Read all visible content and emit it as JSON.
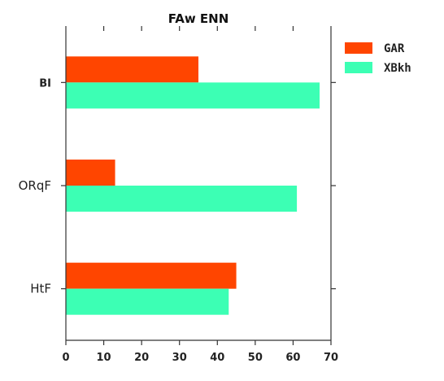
{
  "chart_data": {
    "type": "bar",
    "orientation": "horizontal",
    "title": "FAw  ENN",
    "categories": [
      "BI",
      "ORqF",
      "HtF"
    ],
    "series": [
      {
        "name": "GAR",
        "values": [
          35,
          13,
          45
        ],
        "color": "#ff4500"
      },
      {
        "name": "XBkh",
        "values": [
          67,
          61,
          43
        ],
        "color": "#3cffb4"
      }
    ],
    "xlim": [
      0,
      70
    ],
    "xticks": [
      0,
      10,
      20,
      30,
      40,
      50,
      60,
      70
    ],
    "xlabel": "",
    "ylabel": "",
    "grid": false,
    "legend_position": "outside-right-top"
  }
}
